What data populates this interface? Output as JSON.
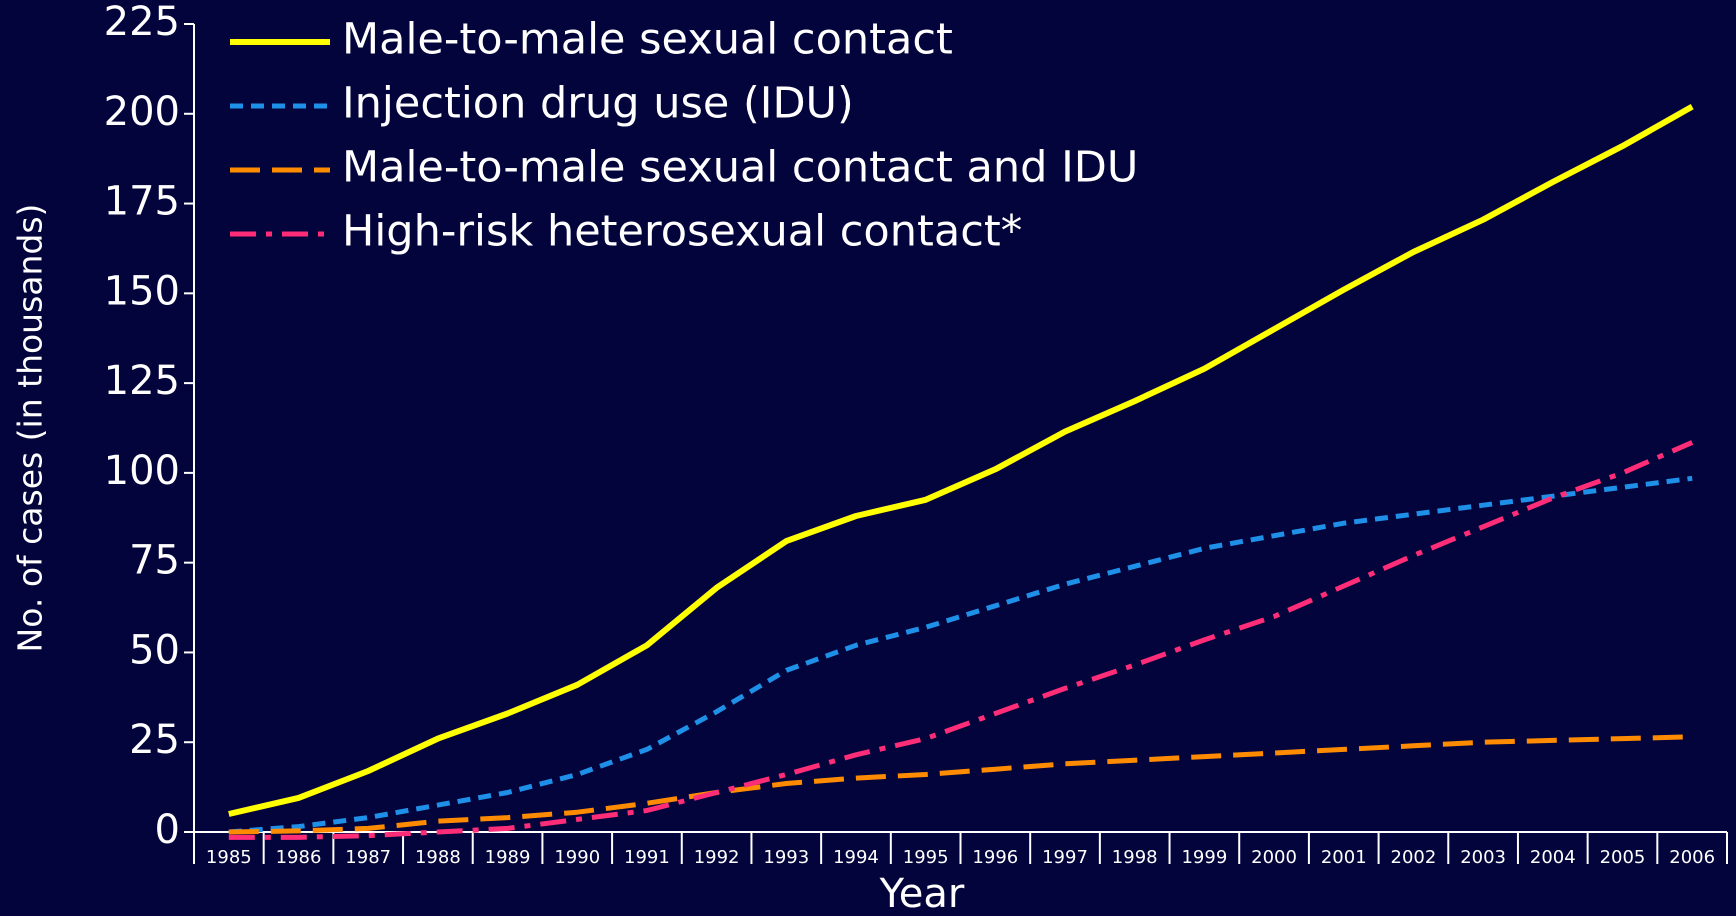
{
  "chart_data": {
    "type": "line",
    "x_label": "Year",
    "y_label": "No. of cases (in thousands)",
    "categories": [
      "1985",
      "1986",
      "1987",
      "1988",
      "1989",
      "1990",
      "1991",
      "1992",
      "1993",
      "1994",
      "1995",
      "1996",
      "1997",
      "1998",
      "1999",
      "2000",
      "2001",
      "2002",
      "2003",
      "2004",
      "2005",
      "2006"
    ],
    "ylim": [
      0,
      225
    ],
    "yticks": [
      0,
      25,
      50,
      75,
      100,
      125,
      150,
      175,
      200,
      225
    ],
    "legend": "upper left",
    "series": [
      {
        "name": "Male-to-male sexual contact",
        "color": "#ffff00",
        "dash": "solid",
        "values": [
          5,
          9.5,
          17,
          26,
          33,
          41,
          52,
          68,
          81,
          88,
          92.5,
          101,
          111.5,
          120,
          129,
          140,
          151,
          161.5,
          170.5,
          181,
          191,
          202
        ]
      },
      {
        "name": "Injection drug use (IDU)",
        "color": "#1e90e8",
        "dash": "dashed",
        "values": [
          0,
          1.5,
          4,
          7.5,
          11,
          16,
          23,
          33.5,
          45,
          52,
          57,
          63,
          69,
          74,
          79,
          82.5,
          86,
          88.5,
          91,
          93.5,
          96,
          98.5
        ]
      },
      {
        "name": "Male-to-male sexual contact and IDU",
        "color": "#ff8c00",
        "dash": "longdash",
        "values": [
          0,
          0.3,
          1,
          3,
          4,
          5.5,
          8,
          11,
          13.5,
          15,
          16,
          17.5,
          19,
          20,
          21,
          22,
          23,
          24,
          25,
          25.5,
          26,
          26.5
        ]
      },
      {
        "name": "High-risk heterosexual contact*",
        "color": "#ff2d78",
        "dash": "dashdot",
        "values": [
          -1.5,
          -1.5,
          -1,
          0,
          1,
          3.5,
          6,
          11,
          16,
          21.5,
          26,
          33,
          40,
          46.5,
          53.5,
          60,
          68.5,
          77,
          85,
          93,
          100,
          108.5
        ]
      }
    ]
  }
}
